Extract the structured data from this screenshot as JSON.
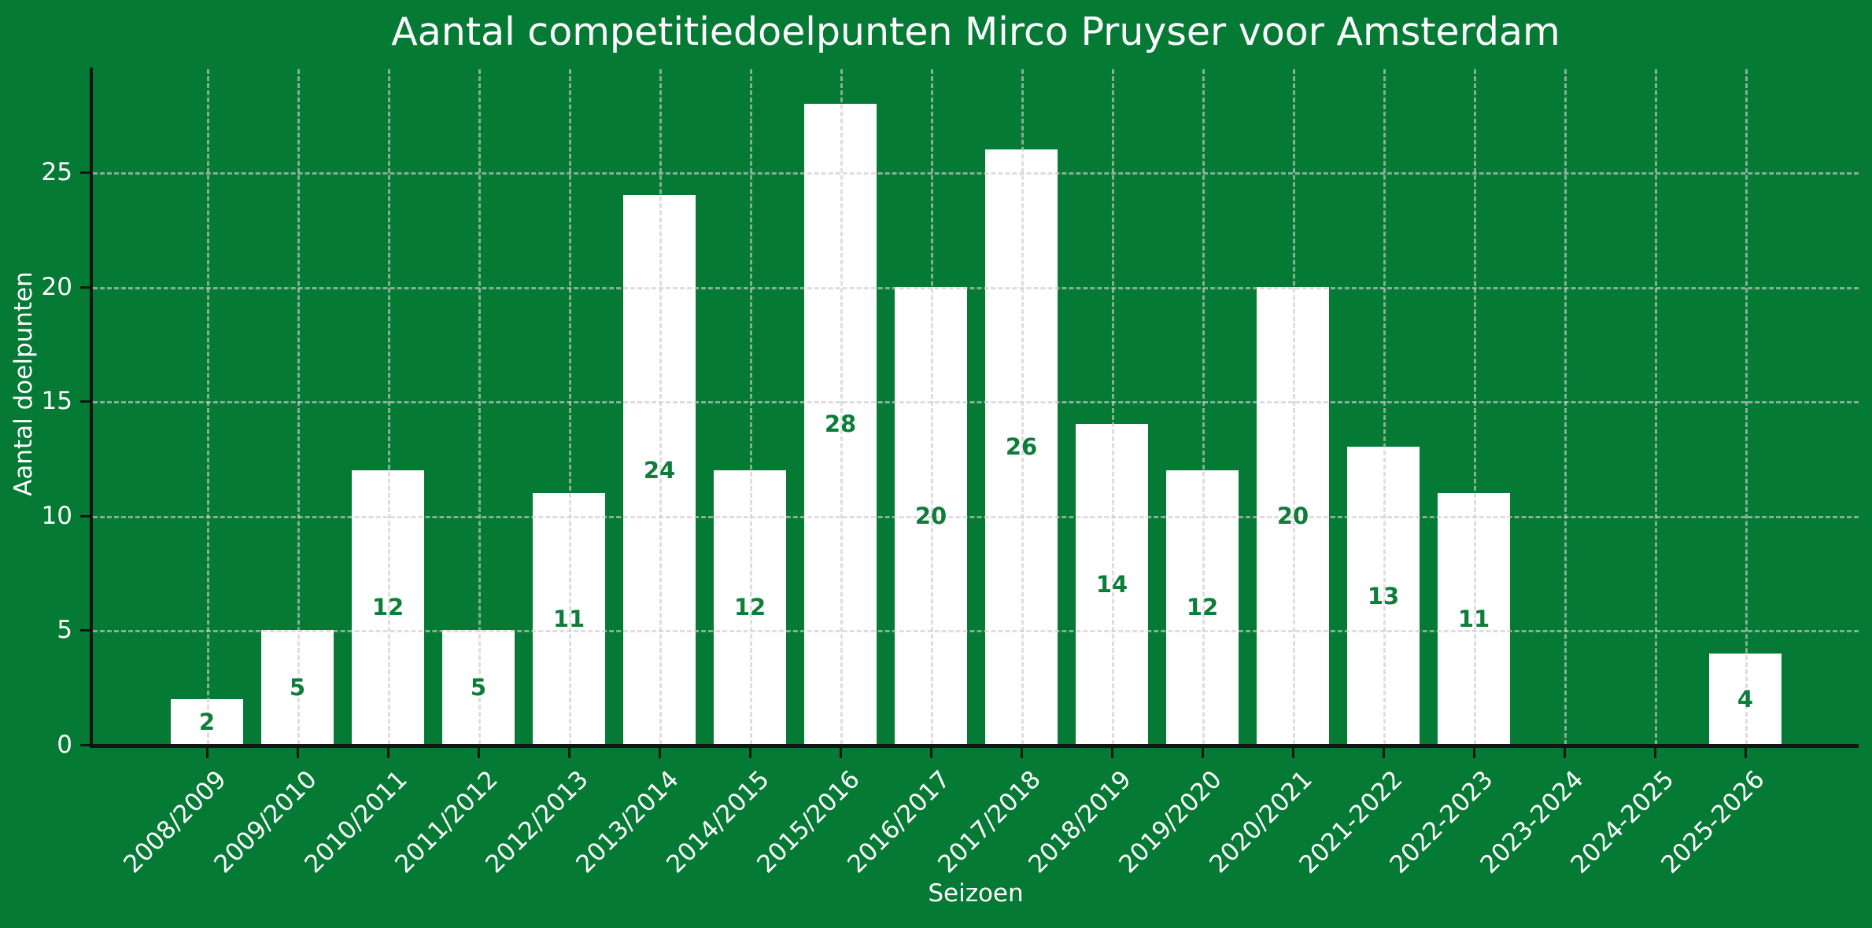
{
  "title": "Aantal competitiedoelpunten Mirco Pruyser voor Amsterdam",
  "chart_data": {
    "type": "bar",
    "title": "Aantal competitiedoelpunten Mirco Pruyser voor Amsterdam",
    "xlabel": "Seizoen",
    "ylabel": "Aantal doelpunten",
    "categories": [
      "2008/2009",
      "2009/2010",
      "2010/2011",
      "2011/2012",
      "2012/2013",
      "2013/2014",
      "2014/2015",
      "2015/2016",
      "2016/2017",
      "2017/2018",
      "2018/2019",
      "2019/2020",
      "2020/2021",
      "2021-2022",
      "2022-2023",
      "2023-2024",
      "2024-2025",
      "2025-2026"
    ],
    "values": [
      2,
      5,
      12,
      5,
      11,
      24,
      12,
      28,
      20,
      26,
      14,
      12,
      20,
      13,
      11,
      0,
      0,
      4
    ],
    "bar_value_labels": [
      "2",
      "5",
      "12",
      "5",
      "11",
      "24",
      "12",
      "28",
      "20",
      "26",
      "14",
      "12",
      "20",
      "13",
      "11",
      "",
      "",
      "4"
    ],
    "yticks": [
      0,
      5,
      10,
      15,
      20,
      25
    ],
    "ylim": [
      0,
      29.5
    ],
    "grid": "dashed gray, horizontal at every 5 and vertical at every category, drawn over the bars",
    "legend": "none",
    "value_label_position": "centered inside bar"
  },
  "colors": {
    "background": "#057A35",
    "bar_fill": "#FFFFFF",
    "bar_value_label": "#0D7D3A",
    "text": "#FFFFFF",
    "axis": "#141414",
    "gridline": "rgba(205,205,205,0.65)"
  }
}
